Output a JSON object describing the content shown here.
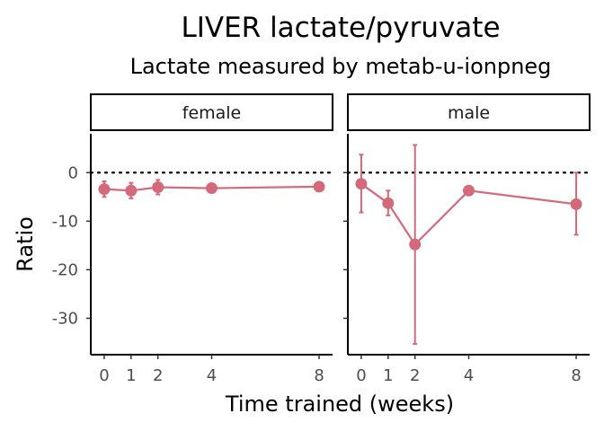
{
  "chart_data": {
    "type": "line",
    "title": "LIVER lactate/pyruvate",
    "subtitle": "Lactate measured by metab-u-ionpneg",
    "xlabel": "Time trained (weeks)",
    "ylabel": "Ratio",
    "x_ticks": [
      0,
      1,
      2,
      4,
      8
    ],
    "y_ticks": [
      0,
      -10,
      -20,
      -30
    ],
    "ylim": [
      -37.5,
      8
    ],
    "xlim": [
      -0.5,
      8.5
    ],
    "reference_line": 0,
    "color": "#d4697a",
    "panels": [
      {
        "label": "female",
        "x": [
          0,
          1,
          2,
          4,
          8
        ],
        "y": [
          -3.4,
          -3.7,
          -3.0,
          -3.2,
          -2.9
        ],
        "lower": [
          -5.0,
          -5.3,
          -4.5,
          -3.4,
          -3.1
        ],
        "upper": [
          -1.8,
          -2.1,
          -1.5,
          -3.0,
          -2.7
        ]
      },
      {
        "label": "male",
        "x": [
          0,
          1,
          2,
          4,
          8
        ],
        "y": [
          -2.3,
          -6.3,
          -14.8,
          -3.7,
          -6.5
        ],
        "lower": [
          -8.2,
          -8.8,
          -35.3,
          -3.9,
          -12.8
        ],
        "upper": [
          3.7,
          -3.7,
          5.7,
          -3.5,
          0.0
        ]
      }
    ]
  }
}
